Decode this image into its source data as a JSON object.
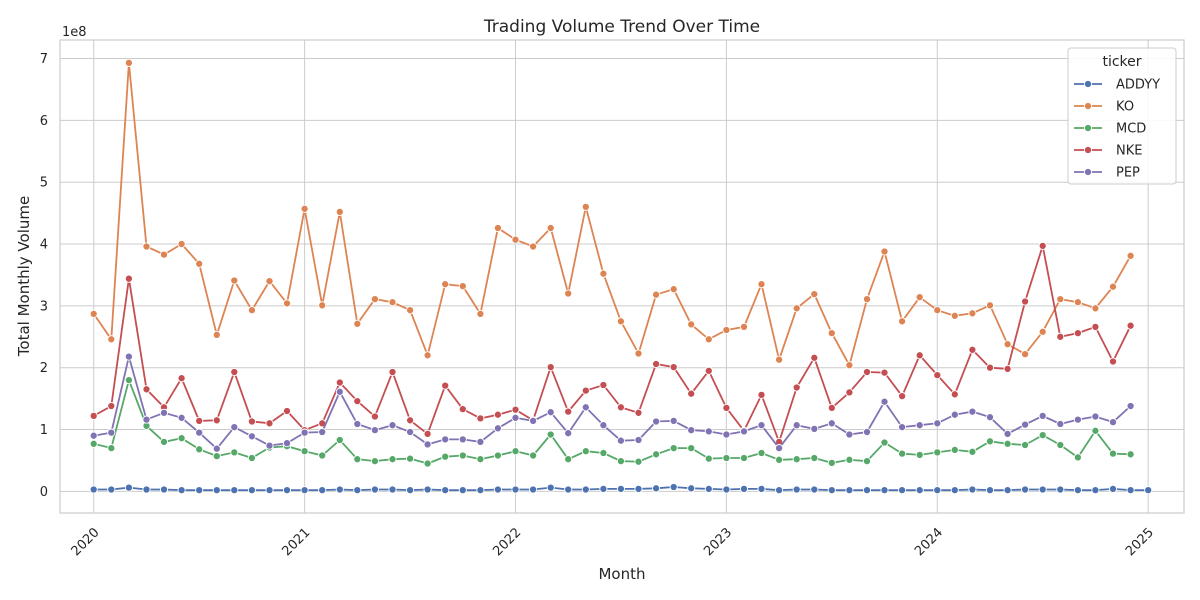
{
  "chart_data": {
    "type": "line",
    "title": "Trading Volume Trend Over Time",
    "xlabel": "Month",
    "ylabel": "Total Monthly Volume",
    "y_multiplier_label": "1e8",
    "y_unit": 100000000,
    "ylim": [
      -0.35,
      7.3
    ],
    "yticks": [
      0,
      1,
      2,
      3,
      4,
      5,
      6,
      7
    ],
    "xlim": [
      2019.84,
      2025.17
    ],
    "xticks": [
      "2020",
      "2021",
      "2022",
      "2023",
      "2024",
      "2025"
    ],
    "x_start": "2020-01",
    "grid": true,
    "legend": {
      "title": "ticker",
      "placement": "top-right"
    },
    "series": [
      {
        "name": "ADDYY",
        "color": "#4c72b0",
        "values": [
          0.03,
          0.03,
          0.06,
          0.03,
          0.03,
          0.02,
          0.02,
          0.02,
          0.02,
          0.02,
          0.02,
          0.02,
          0.02,
          0.02,
          0.03,
          0.02,
          0.03,
          0.03,
          0.02,
          0.03,
          0.02,
          0.02,
          0.02,
          0.03,
          0.03,
          0.03,
          0.06,
          0.03,
          0.03,
          0.04,
          0.04,
          0.04,
          0.05,
          0.07,
          0.05,
          0.04,
          0.03,
          0.04,
          0.04,
          0.02,
          0.03,
          0.03,
          0.02,
          0.02,
          0.02,
          0.02,
          0.02,
          0.02,
          0.02,
          0.02,
          0.03,
          0.02,
          0.02,
          0.03,
          0.03,
          0.03,
          0.02,
          0.02,
          0.04,
          0.02,
          0.02
        ]
      },
      {
        "name": "KO",
        "color": "#dd8452",
        "values": [
          2.87,
          2.46,
          6.93,
          3.96,
          3.83,
          4.0,
          3.68,
          2.53,
          3.41,
          2.93,
          3.4,
          3.04,
          4.57,
          3.01,
          4.52,
          2.71,
          3.11,
          3.06,
          2.93,
          2.2,
          3.35,
          3.32,
          2.87,
          4.26,
          4.07,
          3.96,
          4.26,
          3.2,
          4.6,
          3.52,
          2.75,
          2.23,
          3.18,
          3.27,
          2.7,
          2.46,
          2.61,
          2.66,
          3.35,
          2.13,
          2.96,
          3.19,
          2.56,
          2.04,
          3.11,
          3.88,
          2.75,
          3.14,
          2.93,
          2.84,
          2.88,
          3.01,
          2.38,
          2.22,
          2.58,
          3.11,
          3.06,
          2.96,
          3.31,
          3.81
        ]
      },
      {
        "name": "MCD",
        "color": "#55a868",
        "values": [
          0.77,
          0.7,
          1.8,
          1.06,
          0.8,
          0.86,
          0.68,
          0.57,
          0.63,
          0.54,
          0.71,
          0.73,
          0.65,
          0.58,
          0.83,
          0.52,
          0.49,
          0.52,
          0.53,
          0.45,
          0.56,
          0.58,
          0.52,
          0.58,
          0.65,
          0.58,
          0.92,
          0.52,
          0.65,
          0.62,
          0.49,
          0.48,
          0.6,
          0.7,
          0.7,
          0.53,
          0.54,
          0.54,
          0.62,
          0.51,
          0.52,
          0.54,
          0.46,
          0.51,
          0.49,
          0.79,
          0.61,
          0.59,
          0.63,
          0.67,
          0.64,
          0.81,
          0.77,
          0.75,
          0.91,
          0.75,
          0.55,
          0.98,
          0.61,
          0.6
        ]
      },
      {
        "name": "NKE",
        "color": "#c44e52",
        "values": [
          1.22,
          1.38,
          3.44,
          1.65,
          1.36,
          1.83,
          1.14,
          1.15,
          1.93,
          1.13,
          1.1,
          1.3,
          0.99,
          1.1,
          1.76,
          1.46,
          1.21,
          1.93,
          1.15,
          0.93,
          1.71,
          1.33,
          1.18,
          1.24,
          1.32,
          1.15,
          2.01,
          1.29,
          1.63,
          1.72,
          1.36,
          1.27,
          2.06,
          2.01,
          1.58,
          1.95,
          1.35,
          0.98,
          1.56,
          0.8,
          1.68,
          2.16,
          1.35,
          1.6,
          1.93,
          1.92,
          1.54,
          2.2,
          1.88,
          1.57,
          2.29,
          2.0,
          1.98,
          3.07,
          3.97,
          2.5,
          2.56,
          2.66,
          2.1,
          2.68
        ]
      },
      {
        "name": "PEP",
        "color": "#8172b3",
        "values": [
          0.9,
          0.95,
          2.18,
          1.16,
          1.27,
          1.19,
          0.95,
          0.69,
          1.04,
          0.89,
          0.74,
          0.78,
          0.95,
          0.96,
          1.61,
          1.09,
          0.99,
          1.07,
          0.96,
          0.76,
          0.84,
          0.84,
          0.8,
          1.02,
          1.19,
          1.14,
          1.28,
          0.94,
          1.36,
          1.07,
          0.82,
          0.83,
          1.13,
          1.14,
          0.99,
          0.97,
          0.92,
          0.97,
          1.07,
          0.7,
          1.07,
          1.01,
          1.1,
          0.92,
          0.96,
          1.45,
          1.04,
          1.07,
          1.1,
          1.24,
          1.29,
          1.2,
          0.93,
          1.08,
          1.22,
          1.09,
          1.16,
          1.21,
          1.12,
          1.38
        ]
      }
    ]
  }
}
